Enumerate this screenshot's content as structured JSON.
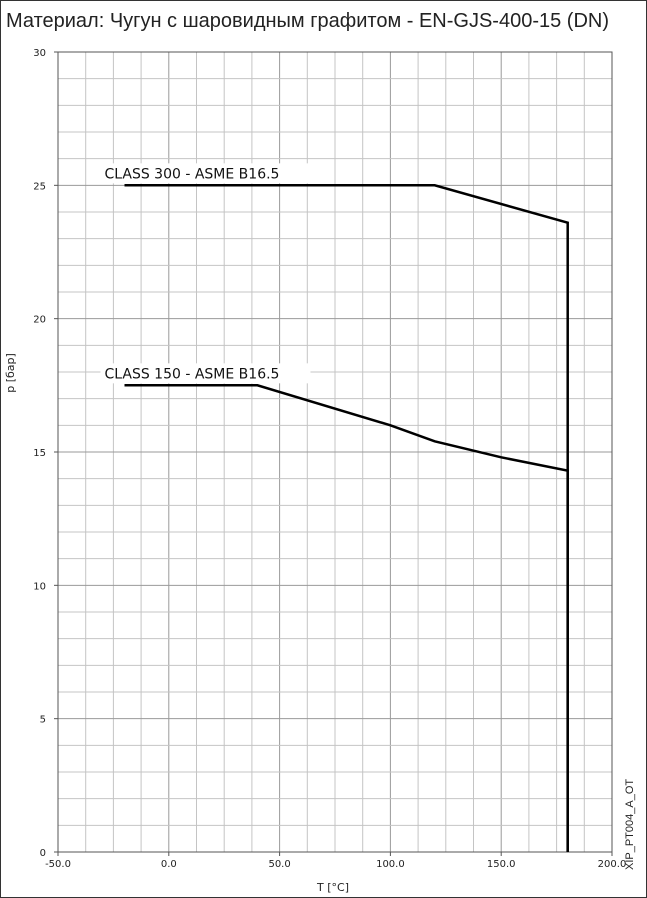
{
  "chart_data": {
    "type": "line",
    "title": "Материал: Чугун с шаровидным графитом - EN-GJS-400-15 (DN)",
    "xlabel": "T [°C]",
    "ylabel": "p [бар]",
    "xlim": [
      -50,
      200
    ],
    "ylim": [
      0,
      30
    ],
    "x_ticks": [
      "-50.0",
      "0.0",
      "50.0",
      "100.0",
      "150.0",
      "200.0"
    ],
    "y_ticks": [
      "0",
      "5",
      "10",
      "15",
      "20",
      "25",
      "30"
    ],
    "grid": true,
    "series": [
      {
        "name": "CLASS 300 - ASME B16.5",
        "color": "#000000",
        "points": [
          [
            -20,
            25.0
          ],
          [
            120,
            25.0
          ],
          [
            180,
            23.6
          ],
          [
            180,
            0
          ]
        ]
      },
      {
        "name": "CLASS 150 - ASME B16.5",
        "color": "#000000",
        "points": [
          [
            -20,
            17.5
          ],
          [
            40,
            17.5
          ],
          [
            100,
            16.0
          ],
          [
            120,
            15.4
          ],
          [
            150,
            14.8
          ],
          [
            180,
            14.3
          ],
          [
            180,
            0
          ]
        ]
      }
    ],
    "side_code": "XIP_PT004_A_OT"
  }
}
